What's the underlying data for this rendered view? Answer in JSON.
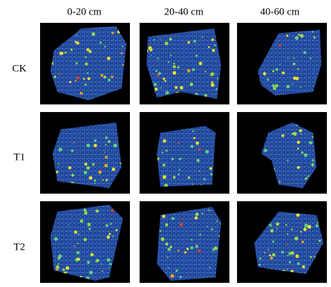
{
  "columns": [
    "0-20 cm",
    "20-40 cm",
    "40-60 cm"
  ],
  "rows": [
    "CK",
    "T1",
    "T2"
  ]
}
